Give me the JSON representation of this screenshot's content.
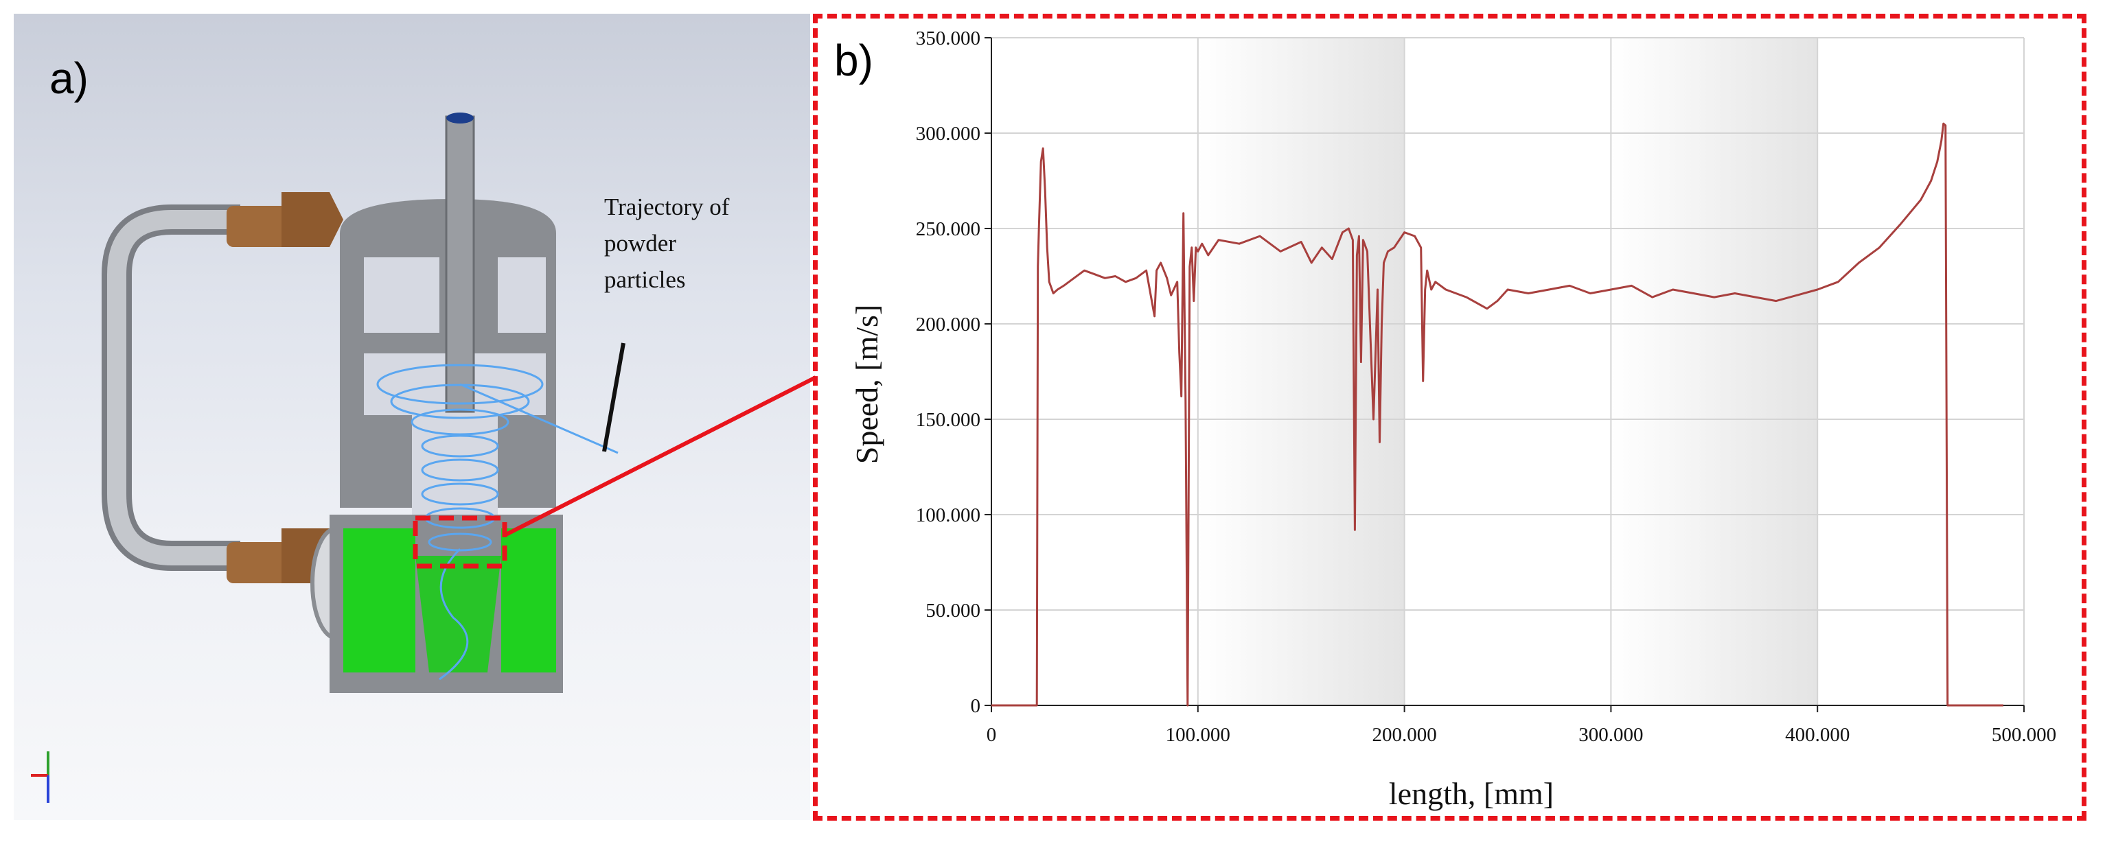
{
  "figure": {
    "panel_a_label": "a)",
    "panel_b_label": "b)",
    "annotation": "Trajectory  of\npowder\nparticles",
    "callout_color": "#e8141c"
  },
  "cad": {
    "background_top": "#c9ceda",
    "body_color": "#8a8d92",
    "nozzle_color": "#1fd11f",
    "fitting_color": "#a06a3a",
    "trajectory_color": "#5aa6f0"
  },
  "chart_data": {
    "type": "line",
    "title": "",
    "xlabel": "length, [mm]",
    "ylabel": "Speed, [m/s]",
    "xlim": [
      0,
      500
    ],
    "ylim": [
      0,
      350
    ],
    "x_ticks": [
      0,
      100,
      200,
      300,
      400,
      500
    ],
    "y_ticks": [
      0,
      50,
      100,
      150,
      200,
      250,
      300,
      350
    ],
    "x_tick_labels": [
      "0",
      "100.000",
      "200.000",
      "300.000",
      "400.000",
      "500.000"
    ],
    "y_tick_labels": [
      "0",
      "50.000",
      "100.000",
      "150.000",
      "200.000",
      "250.000",
      "300.000",
      "350.000"
    ],
    "grid": true,
    "line_color": "#a8403e",
    "series": [
      {
        "values_x": [
          0,
          22,
          22.5,
          23,
          24,
          25,
          26,
          27,
          28,
          30,
          32,
          35,
          40,
          45,
          50,
          55,
          60,
          65,
          70,
          75,
          78,
          79,
          80,
          81,
          82,
          85,
          87,
          90,
          91,
          92,
          93,
          94,
          95,
          96,
          97,
          98,
          99,
          100,
          102,
          105,
          110,
          120,
          130,
          140,
          150,
          155,
          160,
          165,
          170,
          173,
          175,
          176,
          177,
          178,
          179,
          180,
          182,
          185,
          187,
          188,
          189,
          190,
          192,
          195,
          200,
          205,
          208,
          209,
          210,
          211,
          213,
          215,
          220,
          230,
          240,
          245,
          250,
          260,
          270,
          280,
          290,
          300,
          310,
          320,
          330,
          340,
          350,
          360,
          370,
          380,
          390,
          400,
          410,
          420,
          430,
          440,
          450,
          455,
          458,
          460,
          461,
          462,
          463,
          464,
          470,
          490
        ],
        "values_y": [
          0,
          0,
          230,
          250,
          285,
          292,
          270,
          240,
          222,
          216,
          218,
          220,
          224,
          228,
          226,
          224,
          225,
          222,
          224,
          228,
          210,
          204,
          228,
          230,
          232,
          224,
          215,
          222,
          185,
          162,
          258,
          160,
          0,
          230,
          240,
          212,
          240,
          238,
          242,
          236,
          244,
          242,
          246,
          238,
          243,
          232,
          240,
          234,
          248,
          250,
          244,
          92,
          236,
          246,
          180,
          244,
          238,
          150,
          218,
          138,
          200,
          232,
          238,
          240,
          248,
          246,
          240,
          170,
          218,
          228,
          218,
          222,
          218,
          214,
          208,
          212,
          218,
          216,
          218,
          220,
          216,
          218,
          220,
          214,
          218,
          216,
          214,
          216,
          214,
          212,
          215,
          218,
          222,
          232,
          240,
          252,
          265,
          275,
          285,
          296,
          305,
          304,
          0,
          0,
          0,
          0
        ]
      }
    ]
  }
}
